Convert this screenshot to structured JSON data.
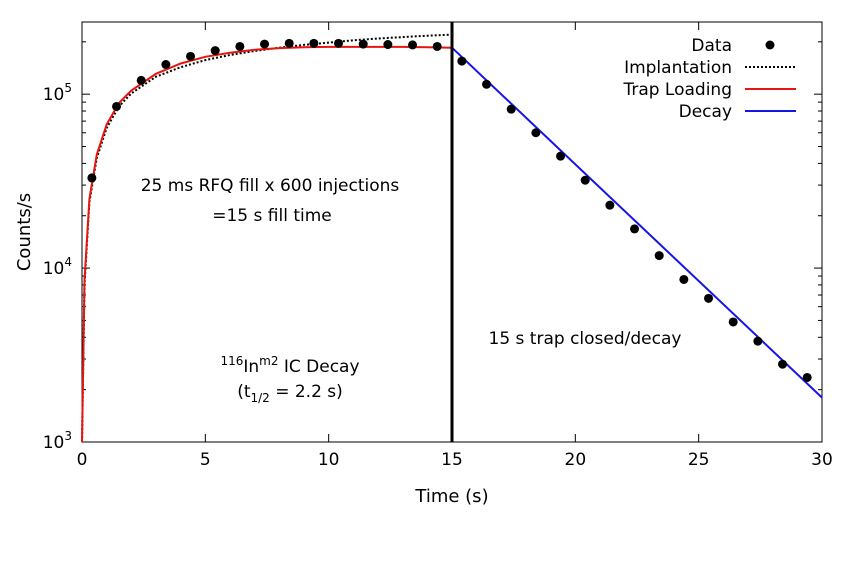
{
  "chart_data": {
    "type": "scatter",
    "xlabel": "Time (s)",
    "ylabel": "Counts/s",
    "xlim": [
      0,
      30
    ],
    "ylim": [
      1000,
      260000
    ],
    "yscale": "log",
    "grid": false,
    "legend_position": "top-right",
    "x_ticks": [
      "0",
      "5",
      "10",
      "15",
      "20",
      "25",
      "30"
    ],
    "y_ticks": [
      {
        "base": "10",
        "exp": "3"
      },
      {
        "base": "10",
        "exp": "4"
      },
      {
        "base": "10",
        "exp": "5"
      }
    ],
    "series": [
      {
        "name": "Data",
        "style": "points",
        "color": "#000000",
        "x": [
          0.4,
          1.4,
          2.4,
          3.4,
          4.4,
          5.4,
          6.4,
          7.4,
          8.4,
          9.4,
          10.4,
          11.4,
          12.4,
          13.4,
          14.4,
          15.4,
          16.4,
          17.4,
          18.4,
          19.4,
          20.4,
          21.4,
          22.4,
          23.4,
          24.4,
          25.4,
          26.4,
          27.4,
          28.4,
          29.4
        ],
        "y": [
          33000,
          85000,
          120000,
          148000,
          165000,
          178000,
          188000,
          194000,
          196000,
          196000,
          196000,
          194000,
          193000,
          192000,
          188000,
          155000,
          114000,
          82000,
          60000,
          44000,
          32000,
          23000,
          16800,
          11800,
          8600,
          6700,
          4900,
          3800,
          2800,
          2350
        ]
      },
      {
        "name": "Implantation",
        "style": "dotted",
        "color": "#000000",
        "x": [
          0,
          0.1,
          0.3,
          0.6,
          1,
          1.5,
          2,
          3,
          4,
          5,
          6,
          7,
          8,
          9,
          10,
          11,
          12,
          13,
          14,
          15
        ],
        "y": [
          1000,
          8000,
          24000,
          43000,
          64000,
          85000,
          101000,
          126000,
          143000,
          157000,
          168000,
          177000,
          185000,
          192000,
          198000,
          204000,
          209000,
          213000,
          217000,
          220000
        ]
      },
      {
        "name": "Trap Loading",
        "style": "line",
        "color": "#e8140f",
        "x": [
          0,
          0.1,
          0.3,
          0.6,
          1,
          1.5,
          2,
          3,
          4,
          5,
          6,
          7,
          8,
          9,
          10,
          11,
          12,
          13,
          14,
          15
        ],
        "y": [
          1000,
          8500,
          25000,
          45000,
          67000,
          89000,
          105000,
          131000,
          150000,
          164000,
          173000,
          180000,
          184000,
          186000,
          187000,
          187000,
          187000,
          187000,
          186000,
          185000
        ]
      },
      {
        "name": "Decay",
        "style": "line",
        "color": "#1515e6",
        "x": [
          15,
          30
        ],
        "y": [
          185000,
          1800
        ]
      }
    ],
    "vertical_line": {
      "x": 15,
      "color": "#000000"
    },
    "annotations": {
      "fill_line1": "25 ms RFQ fill x 600 injections",
      "fill_line2": "=15 s fill time",
      "decay_note": "15 s trap closed/decay",
      "isotope_mass": "116",
      "isotope_symbol": "In",
      "isotope_state": "m2",
      "isotope_text": " IC Decay",
      "halflife_open": "(t",
      "halflife_sub": "1/2",
      "halflife_value": " = 2.2 s)"
    }
  }
}
